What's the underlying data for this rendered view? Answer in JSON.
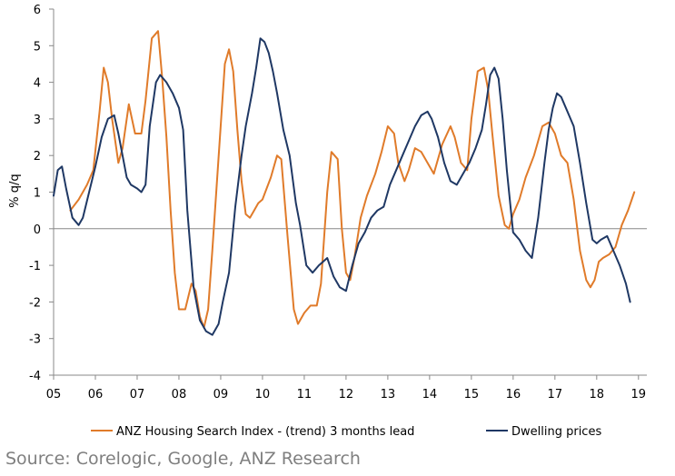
{
  "source_note": "Source: Corelogic, Google, ANZ Research",
  "chart_data": {
    "type": "line",
    "title": "",
    "xlabel": "",
    "ylabel": "% q/q",
    "ylim": [
      -4,
      6
    ],
    "xlim": [
      2005.0,
      2019.2
    ],
    "y_ticks": [
      "6",
      "5",
      "4",
      "3",
      "2",
      "1",
      "0",
      "-1",
      "-2",
      "-3",
      "-4"
    ],
    "y_tick_values": [
      6,
      5,
      4,
      3,
      2,
      1,
      0,
      -1,
      -2,
      -3,
      -4
    ],
    "x_ticks": [
      "05",
      "06",
      "07",
      "08",
      "09",
      "10",
      "11",
      "12",
      "13",
      "14",
      "15",
      "16",
      "17",
      "18",
      "19"
    ],
    "x_tick_values": [
      2005,
      2006,
      2007,
      2008,
      2009,
      2010,
      2011,
      2012,
      2013,
      2014,
      2015,
      2016,
      2017,
      2018,
      2019
    ],
    "grid": false,
    "legend_position": "bottom",
    "series": [
      {
        "name": "ANZ Housing Search Index - (trend) 3 months lead",
        "color": "#e07b2a",
        "x": [
          2005.4,
          2005.6,
          2005.8,
          2005.95,
          2006.1,
          2006.2,
          2006.3,
          2006.4,
          2006.55,
          2006.65,
          2006.8,
          2006.95,
          2007.1,
          2007.2,
          2007.35,
          2007.5,
          2007.6,
          2007.7,
          2007.8,
          2007.9,
          2008.0,
          2008.15,
          2008.3,
          2008.4,
          2008.5,
          2008.6,
          2008.7,
          2008.8,
          2008.9,
          2009.0,
          2009.1,
          2009.2,
          2009.3,
          2009.4,
          2009.5,
          2009.6,
          2009.7,
          2009.8,
          2009.9,
          2010.0,
          2010.2,
          2010.35,
          2010.45,
          2010.6,
          2010.75,
          2010.85,
          2011.0,
          2011.15,
          2011.3,
          2011.4,
          2011.55,
          2011.65,
          2011.8,
          2011.9,
          2012.0,
          2012.1,
          2012.2,
          2012.35,
          2012.5,
          2012.7,
          2012.85,
          2013.0,
          2013.15,
          2013.25,
          2013.4,
          2013.5,
          2013.65,
          2013.8,
          2013.95,
          2014.1,
          2014.3,
          2014.5,
          2014.6,
          2014.75,
          2014.9,
          2015.0,
          2015.15,
          2015.3,
          2015.4,
          2015.5,
          2015.65,
          2015.8,
          2015.9,
          2016.0,
          2016.15,
          2016.3,
          2016.5,
          2016.7,
          2016.85,
          2017.0,
          2017.15,
          2017.3,
          2017.45,
          2017.6,
          2017.75,
          2017.85,
          2017.95,
          2018.05,
          2018.15,
          2018.3,
          2018.45,
          2018.6,
          2018.75,
          2018.9
        ],
        "values": [
          0.5,
          0.8,
          1.2,
          1.6,
          3.2,
          4.4,
          4.0,
          3.0,
          1.8,
          2.2,
          3.4,
          2.6,
          2.6,
          3.5,
          5.2,
          5.4,
          4.1,
          2.5,
          0.5,
          -1.2,
          -2.2,
          -2.2,
          -1.5,
          -1.7,
          -2.4,
          -2.7,
          -2.2,
          -0.6,
          1.1,
          2.8,
          4.5,
          4.9,
          4.3,
          2.7,
          1.3,
          0.4,
          0.3,
          0.5,
          0.7,
          0.8,
          1.4,
          2.0,
          1.9,
          -0.2,
          -2.2,
          -2.6,
          -2.3,
          -2.1,
          -2.1,
          -1.5,
          1.0,
          2.1,
          1.9,
          0.0,
          -1.2,
          -1.4,
          -0.8,
          0.3,
          0.9,
          1.5,
          2.1,
          2.8,
          2.6,
          1.8,
          1.3,
          1.6,
          2.2,
          2.1,
          1.8,
          1.5,
          2.3,
          2.8,
          2.5,
          1.8,
          1.6,
          3.0,
          4.3,
          4.4,
          3.8,
          2.6,
          0.9,
          0.1,
          0.0,
          0.4,
          0.8,
          1.4,
          2.0,
          2.8,
          2.9,
          2.6,
          2.0,
          1.8,
          0.8,
          -0.6,
          -1.4,
          -1.6,
          -1.4,
          -0.9,
          -0.8,
          -0.7,
          -0.5,
          0.1,
          0.5,
          1.0
        ]
      },
      {
        "name": "Dwelling prices",
        "color": "#1f3864",
        "x": [
          2005.0,
          2005.1,
          2005.2,
          2005.3,
          2005.45,
          2005.6,
          2005.7,
          2005.85,
          2006.0,
          2006.15,
          2006.3,
          2006.45,
          2006.55,
          2006.65,
          2006.75,
          2006.85,
          2007.0,
          2007.1,
          2007.2,
          2007.3,
          2007.45,
          2007.55,
          2007.7,
          2007.85,
          2008.0,
          2008.1,
          2008.2,
          2008.35,
          2008.5,
          2008.65,
          2008.8,
          2008.95,
          2009.05,
          2009.2,
          2009.35,
          2009.5,
          2009.6,
          2009.75,
          2009.85,
          2009.95,
          2010.05,
          2010.15,
          2010.25,
          2010.35,
          2010.5,
          2010.65,
          2010.8,
          2010.9,
          2011.05,
          2011.2,
          2011.35,
          2011.45,
          2011.55,
          2011.7,
          2011.85,
          2012.0,
          2012.15,
          2012.3,
          2012.45,
          2012.6,
          2012.75,
          2012.9,
          2013.05,
          2013.2,
          2013.35,
          2013.5,
          2013.65,
          2013.8,
          2013.95,
          2014.05,
          2014.2,
          2014.35,
          2014.5,
          2014.65,
          2014.8,
          2014.95,
          2015.1,
          2015.25,
          2015.35,
          2015.45,
          2015.55,
          2015.65,
          2015.75,
          2015.85,
          2016.0,
          2016.15,
          2016.3,
          2016.45,
          2016.6,
          2016.75,
          2016.85,
          2016.95,
          2017.05,
          2017.15,
          2017.3,
          2017.45,
          2017.6,
          2017.75,
          2017.9,
          2018.0,
          2018.1,
          2018.25,
          2018.4,
          2018.55,
          2018.7,
          2018.8
        ],
        "values": [
          0.9,
          1.6,
          1.7,
          1.1,
          0.3,
          0.1,
          0.3,
          1.0,
          1.7,
          2.5,
          3.0,
          3.1,
          2.6,
          2.0,
          1.4,
          1.2,
          1.1,
          1.0,
          1.2,
          2.8,
          4.0,
          4.2,
          4.0,
          3.7,
          3.3,
          2.7,
          0.5,
          -1.6,
          -2.5,
          -2.8,
          -2.9,
          -2.6,
          -2.0,
          -1.2,
          0.6,
          2.0,
          2.8,
          3.7,
          4.4,
          5.2,
          5.1,
          4.8,
          4.3,
          3.7,
          2.7,
          2.0,
          0.7,
          0.1,
          -1.0,
          -1.2,
          -1.0,
          -0.9,
          -0.8,
          -1.3,
          -1.6,
          -1.7,
          -1.0,
          -0.4,
          -0.1,
          0.3,
          0.5,
          0.6,
          1.2,
          1.6,
          2.0,
          2.4,
          2.8,
          3.1,
          3.2,
          3.0,
          2.5,
          1.8,
          1.3,
          1.2,
          1.5,
          1.8,
          2.2,
          2.7,
          3.4,
          4.2,
          4.4,
          4.1,
          3.0,
          1.6,
          -0.1,
          -0.3,
          -0.6,
          -0.8,
          0.3,
          1.8,
          2.7,
          3.3,
          3.7,
          3.6,
          3.2,
          2.8,
          1.8,
          0.7,
          -0.3,
          -0.4,
          -0.3,
          -0.2,
          -0.6,
          -1.0,
          -1.5,
          -2.0
        ]
      }
    ]
  }
}
